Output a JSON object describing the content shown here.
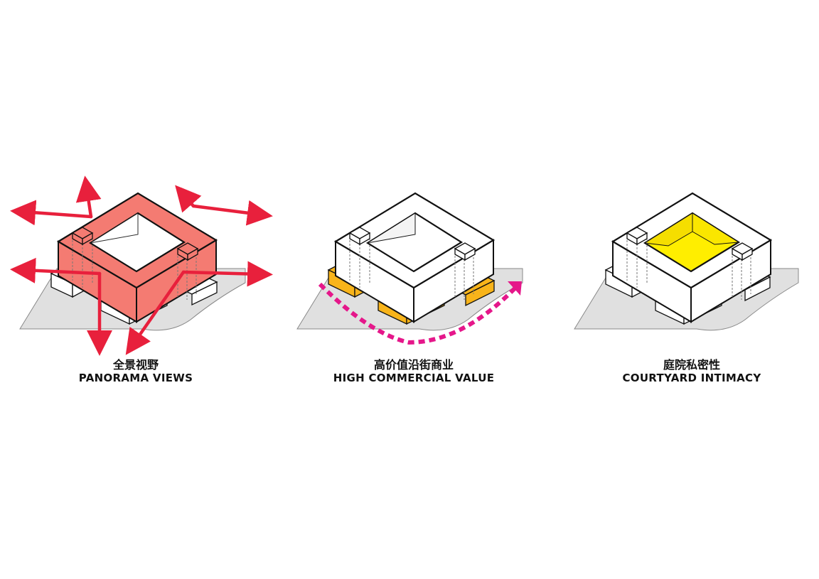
{
  "colors": {
    "panorama": "#f47b72",
    "commercial": "#f8b41a",
    "courtyard": "#ffee00",
    "arrow_red": "#e8203c",
    "path_magenta": "#e5178a",
    "site_gray": "#e0e0e0",
    "outline": "#111111"
  },
  "panels": [
    {
      "key": "panorama",
      "title_zh": "全景视野",
      "title_en": "PANORAMA VIEWS",
      "icon": "outward-view-arrows"
    },
    {
      "key": "commercial",
      "title_zh": "高价值沿街商业",
      "title_en": "HIGH COMMERCIAL VALUE",
      "icon": "street-frontage-dashed-arrow"
    },
    {
      "key": "courtyard",
      "title_zh": "庭院私密性",
      "title_en": "COURTYARD INTIMACY",
      "icon": "highlighted-courtyard"
    }
  ]
}
